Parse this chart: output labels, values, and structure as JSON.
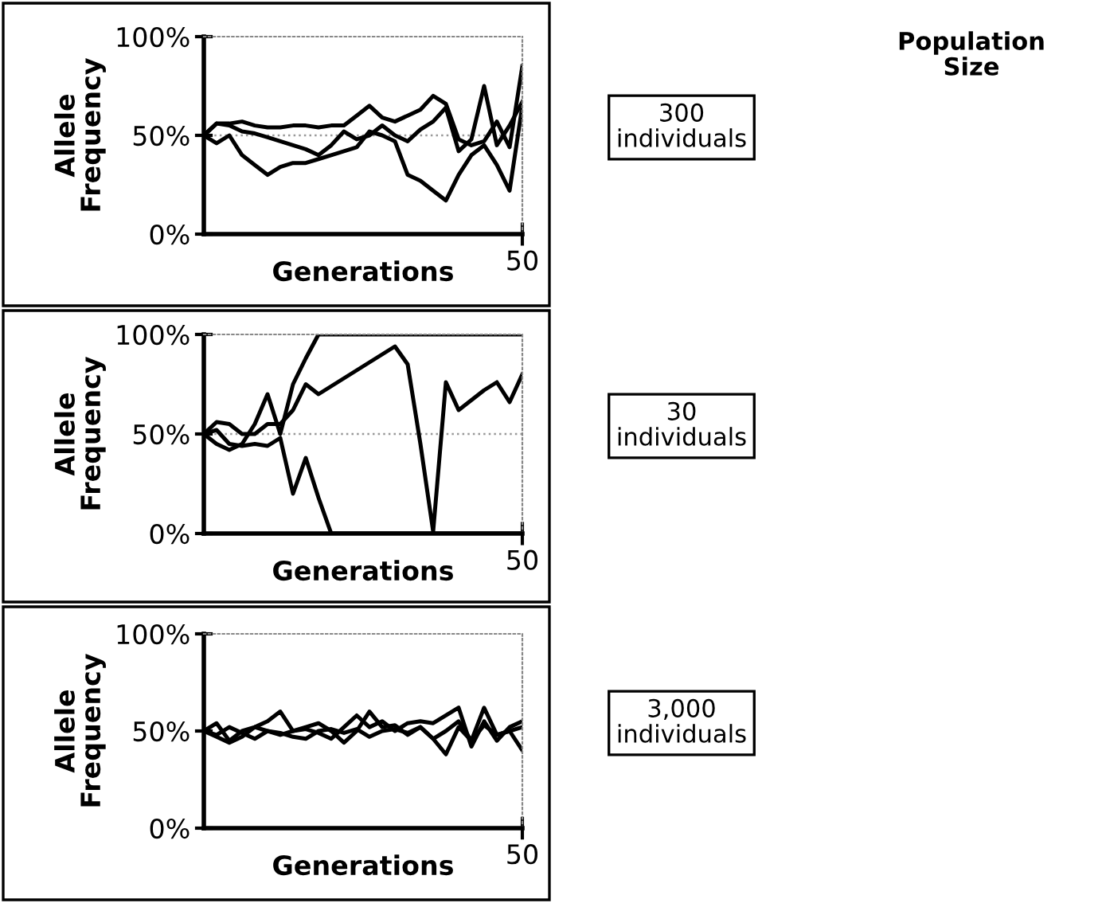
{
  "chart_data": [
    {
      "type": "line",
      "xlabel": "Generations",
      "ylabel": "Allele\nFrequency",
      "annotations": [
        "300\nindividuals",
        "50"
      ],
      "categories": [
        null,
        null,
        null,
        null,
        null,
        null,
        null,
        null,
        null,
        null,
        null,
        null,
        null,
        null,
        null,
        null,
        null,
        null,
        null,
        null,
        null,
        null,
        null,
        null,
        null,
        null
      ],
      "ylim": [
        0,
        100
      ],
      "yticks": [
        {
          "value": 0,
          "label": "0%"
        },
        {
          "value": 50,
          "label": "50%"
        },
        {
          "value": 100,
          "label": "100%"
        }
      ],
      "grid": false,
      "legend": false,
      "marker": "none",
      "line_style": "solid",
      "ref_lines": [
        {
          "axis": "y",
          "value": 50,
          "color": "#999999",
          "line_style": "dotted"
        }
      ],
      "series": [
        {
          "color": "#000000",
          "values": [
            50,
            56,
            56,
            57,
            55,
            54,
            54,
            55,
            55,
            54,
            55,
            55,
            60,
            65,
            59,
            57,
            60,
            63,
            70,
            66,
            48,
            45,
            47,
            57,
            44,
            85
          ]
        },
        {
          "color": "#000000",
          "values": [
            50,
            56,
            55,
            52,
            51,
            49,
            47,
            45,
            43,
            40,
            45,
            52,
            48,
            50,
            55,
            50,
            47,
            53,
            57,
            64,
            42,
            48,
            75,
            45,
            55,
            67
          ]
        },
        {
          "color": "#000000",
          "values": [
            50,
            46,
            50,
            40,
            35,
            30,
            34,
            36,
            36,
            38,
            40,
            42,
            44,
            52,
            50,
            47,
            30,
            27,
            22,
            17,
            30,
            40,
            45,
            35,
            22,
            65
          ]
        }
      ]
    },
    {
      "type": "line",
      "xlabel": "Generations",
      "ylabel": "Allele\nFrequency",
      "annotations": [
        "30\nindividuals",
        "50"
      ],
      "categories": [
        null,
        null,
        null,
        null,
        null,
        null,
        null,
        null,
        null,
        null,
        null,
        null,
        null,
        null,
        null,
        null,
        null,
        null,
        null,
        null,
        null,
        null,
        null,
        null,
        null,
        null
      ],
      "ylim": [
        0,
        100
      ],
      "yticks": [
        {
          "value": 0,
          "label": "0%"
        },
        {
          "value": 50,
          "label": "50%"
        },
        {
          "value": 100,
          "label": "100%"
        }
      ],
      "grid": false,
      "legend": false,
      "marker": "none",
      "line_style": "solid",
      "ref_lines": [
        {
          "axis": "y",
          "value": 50,
          "color": "#999999",
          "line_style": "dotted"
        }
      ],
      "series": [
        {
          "color": "#000000",
          "values": [
            50,
            45,
            42,
            45,
            55,
            70,
            50,
            75,
            88,
            100,
            100,
            100,
            100,
            100,
            100,
            100,
            100,
            100,
            100,
            100,
            100,
            100,
            100,
            100,
            100,
            100
          ]
        },
        {
          "color": "#000000",
          "values": [
            50,
            56,
            55,
            50,
            50,
            55,
            55,
            62,
            75,
            70,
            74,
            78,
            82,
            86,
            90,
            94,
            85,
            45,
            1,
            76,
            62,
            67,
            72,
            76,
            66,
            80
          ]
        },
        {
          "color": "#000000",
          "values": [
            50,
            52,
            45,
            44,
            45,
            44,
            48,
            20,
            38,
            18,
            0,
            0,
            0,
            0,
            0,
            0,
            0,
            0,
            0,
            0,
            0,
            0,
            0,
            0,
            0,
            0
          ]
        }
      ]
    },
    {
      "type": "line",
      "xlabel": "Generations",
      "ylabel": "Allele\nFrequency",
      "annotations": [
        "3,000\nindividuals",
        "50"
      ],
      "categories": [
        null,
        null,
        null,
        null,
        null,
        null,
        null,
        null,
        null,
        null,
        null,
        null,
        null,
        null,
        null,
        null,
        null,
        null,
        null,
        null,
        null,
        null,
        null,
        null,
        null,
        null
      ],
      "ylim": [
        0,
        100
      ],
      "yticks": [
        {
          "value": 0,
          "label": "0%"
        },
        {
          "value": 50,
          "label": "50%"
        },
        {
          "value": 100,
          "label": "100%"
        }
      ],
      "grid": false,
      "legend": false,
      "marker": "none",
      "line_style": "solid",
      "series": [
        {
          "color": "#000000",
          "values": [
            50,
            54,
            45,
            50,
            52,
            55,
            60,
            50,
            51,
            49,
            46,
            52,
            58,
            52,
            55,
            50,
            54,
            55,
            54,
            58,
            62,
            42,
            55,
            45,
            52,
            55
          ]
        },
        {
          "color": "#000000",
          "values": [
            50,
            48,
            52,
            49,
            46,
            50,
            48,
            50,
            52,
            54,
            50,
            44,
            50,
            60,
            52,
            53,
            48,
            52,
            46,
            50,
            55,
            45,
            62,
            48,
            50,
            40
          ]
        },
        {
          "color": "#000000",
          "values": [
            50,
            47,
            44,
            47,
            52,
            50,
            49,
            47,
            46,
            50,
            51,
            49,
            51,
            47,
            50,
            51,
            49,
            52,
            46,
            38,
            52,
            45,
            53,
            48,
            50,
            52
          ]
        }
      ]
    },
    {
      "type": "other",
      "title": "Population\nSize"
    }
  ]
}
